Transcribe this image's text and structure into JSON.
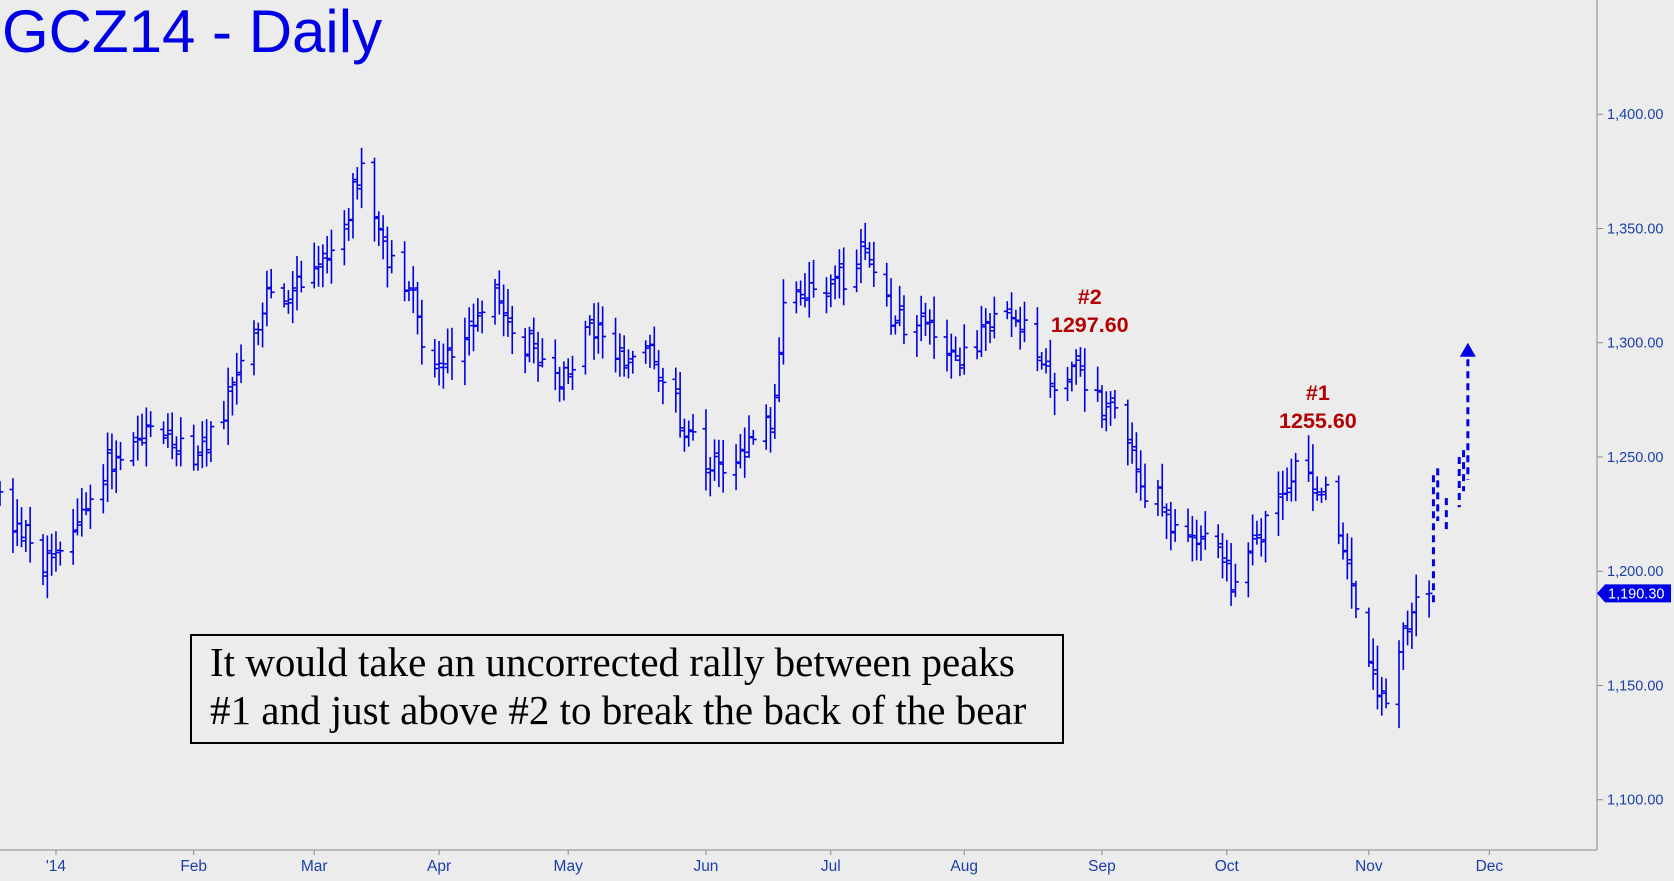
{
  "chart_data": {
    "type": "ohlc",
    "title": "GCZ14 - Daily",
    "price_axis": {
      "position": "right",
      "ticks": [
        "1,400.00",
        "1,350.00",
        "1,300.00",
        "1,250.00",
        "1,200.00",
        "1,150.00",
        "1,100.00"
      ],
      "tick_values": [
        1400,
        1350,
        1300,
        1250,
        1200,
        1150,
        1100
      ],
      "ylim": [
        1078,
        1450
      ]
    },
    "time_axis": {
      "labels": [
        "'14",
        "Feb",
        "Mar",
        "Apr",
        "May",
        "Jun",
        "Jul",
        "Aug",
        "Sep",
        "Oct",
        "Nov",
        "Dec"
      ],
      "label_dates": [
        "2014-01-02",
        "2014-02-03",
        "2014-03-03",
        "2014-04-01",
        "2014-05-01",
        "2014-06-02",
        "2014-07-01",
        "2014-08-01",
        "2014-09-02",
        "2014-10-01",
        "2014-11-03",
        "2014-12-01"
      ],
      "xlim": [
        "2013-12-20",
        "2014-12-26"
      ]
    },
    "last_price": {
      "value": 1190.3,
      "label": "1,190.30"
    },
    "price_waypoints": [
      [
        "2013-12-20",
        1230
      ],
      [
        "2013-12-31",
        1202
      ],
      [
        "2014-01-10",
        1232
      ],
      [
        "2014-01-16",
        1250
      ],
      [
        "2014-01-24",
        1264
      ],
      [
        "2014-02-03",
        1248
      ],
      [
        "2014-02-10",
        1272
      ],
      [
        "2014-02-20",
        1318
      ],
      [
        "2014-02-28",
        1325
      ],
      [
        "2014-03-07",
        1342
      ],
      [
        "2014-03-14",
        1378
      ],
      [
        "2014-03-19",
        1342
      ],
      [
        "2014-03-24",
        1328
      ],
      [
        "2014-03-31",
        1288
      ],
      [
        "2014-04-07",
        1300
      ],
      [
        "2014-04-15",
        1318
      ],
      [
        "2014-04-24",
        1292
      ],
      [
        "2014-05-01",
        1285
      ],
      [
        "2014-05-06",
        1308
      ],
      [
        "2014-05-13",
        1292
      ],
      [
        "2014-05-20",
        1295
      ],
      [
        "2014-05-28",
        1262
      ],
      [
        "2014-06-03",
        1245
      ],
      [
        "2014-06-10",
        1252
      ],
      [
        "2014-06-18",
        1272
      ],
      [
        "2014-06-20",
        1318
      ],
      [
        "2014-06-30",
        1325
      ],
      [
        "2014-07-10",
        1340
      ],
      [
        "2014-07-15",
        1305
      ],
      [
        "2014-07-22",
        1310
      ],
      [
        "2014-07-31",
        1292
      ],
      [
        "2014-08-07",
        1313
      ],
      [
        "2014-08-14",
        1308
      ],
      [
        "2014-08-21",
        1282
      ],
      [
        "2014-08-28",
        1288
      ],
      [
        "2014-09-05",
        1268
      ],
      [
        "2014-09-12",
        1235
      ],
      [
        "2014-09-19",
        1220
      ],
      [
        "2014-09-26",
        1215
      ],
      [
        "2014-10-03",
        1195
      ],
      [
        "2014-10-09",
        1220
      ],
      [
        "2014-10-17",
        1245
      ],
      [
        "2014-10-24",
        1232
      ],
      [
        "2014-10-29",
        1200
      ],
      [
        "2014-11-03",
        1168
      ],
      [
        "2014-11-07",
        1140
      ],
      [
        "2014-11-10",
        1165
      ],
      [
        "2014-11-14",
        1185
      ],
      [
        "2014-11-17",
        1190
      ]
    ],
    "projection": {
      "style": "dashed",
      "bars": [
        [
          "2014-11-18",
          1242,
          1185
        ],
        [
          "2014-11-19",
          1245,
          1222
        ],
        [
          "2014-11-21",
          1232,
          1218
        ],
        [
          "2014-11-24",
          1250,
          1228
        ],
        [
          "2014-11-25",
          1253,
          1235
        ],
        [
          "2014-11-26",
          1298,
          1240
        ]
      ],
      "arrow_to": 1300
    },
    "annotations": [
      {
        "label": "#2",
        "value": "1297.60",
        "date": "2014-08-29",
        "price": 1297.6
      },
      {
        "label": "#1",
        "value": "1255.60",
        "date": "2014-10-21",
        "price": 1255.6
      }
    ],
    "note": [
      "It would take an uncorrected rally between peaks",
      "#1 and just above #2 to break the back of the bear"
    ],
    "colors": {
      "bars": "#0000e6",
      "title": "#0000e6",
      "annotation": "#b30000",
      "axis_text": "#1a3fa8",
      "background": "#ececec"
    }
  }
}
